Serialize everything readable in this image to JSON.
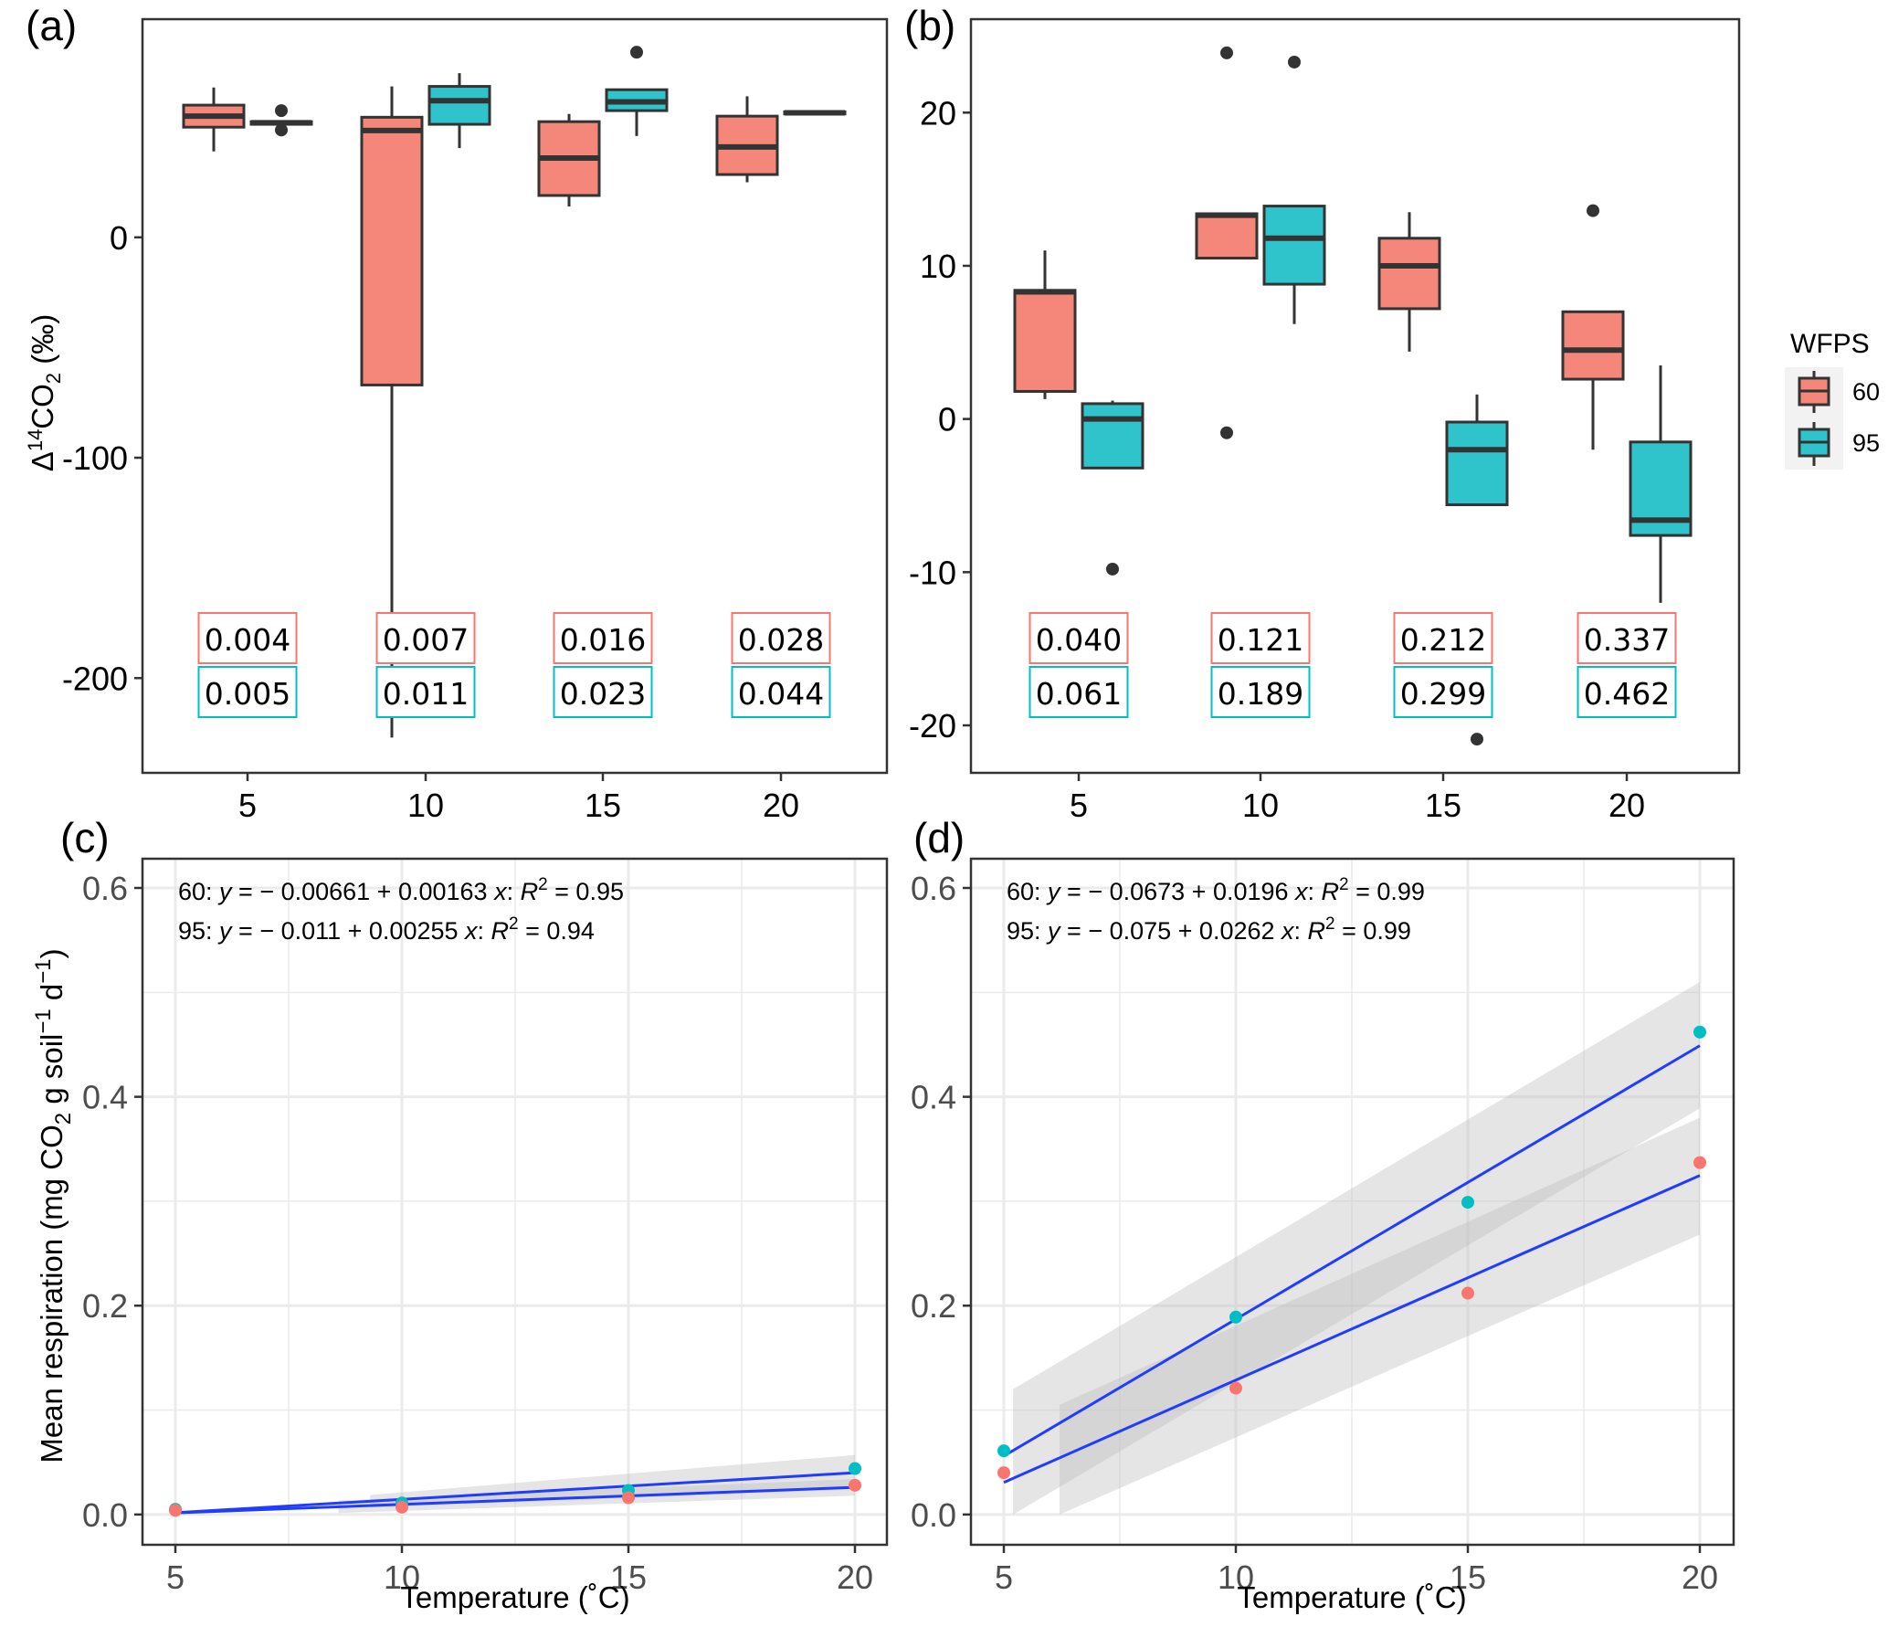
{
  "figure": {
    "panels": [
      "(a)",
      "(b)",
      "(c)",
      "(d)"
    ]
  },
  "legend": {
    "title": "WFPS",
    "entries": [
      {
        "label": "60",
        "color": "#F8766D"
      },
      {
        "label": "95",
        "color": "#00BFC4"
      }
    ]
  },
  "colors": {
    "wfps60": "#F8766D",
    "wfps95": "#00BFC4",
    "box60": "#F4877A",
    "box95": "#2FC4CB",
    "outline": "#333333",
    "fit_line": "#1F3CFF",
    "ribbon": "#BEBEBE",
    "grid": "#EBEBEB"
  },
  "chart_data": [
    {
      "panel": "(a)",
      "type": "box",
      "xlabel": "",
      "ylabel": "Δ14CO2 (‰)",
      "ylabel_parts": {
        "delta": "Δ",
        "sup": "14",
        "main": "CO",
        "sub": "2",
        "unit": " (‰)"
      },
      "categories": [
        "5",
        "10",
        "15",
        "20"
      ],
      "yticks": [
        0,
        -100,
        -200
      ],
      "ytick_labels": [
        "0",
        "-100",
        "-200"
      ],
      "ylim": [
        -243,
        99
      ],
      "grid": false,
      "series": [
        {
          "name": "60",
          "boxes": [
            {
              "whisker_low": 39,
              "q1": 50,
              "median": 55,
              "q3": 60,
              "whisker_high": 68,
              "outliers": []
            },
            {
              "whisker_low": -227,
              "q1": -67,
              "median": 48.5,
              "q3": 54.5,
              "whisker_high": 68.5,
              "outliers": []
            },
            {
              "whisker_low": 14,
              "q1": 19,
              "median": 36,
              "q3": 52.5,
              "whisker_high": 56,
              "outliers": []
            },
            {
              "whisker_low": 25,
              "q1": 28.5,
              "median": 41,
              "q3": 55,
              "whisker_high": 64,
              "outliers": []
            }
          ]
        },
        {
          "name": "95",
          "boxes": [
            {
              "whisker_low": 51,
              "q1": 51.3,
              "median": 52,
              "q3": 52.5,
              "whisker_high": 53,
              "outliers": [
                57.5,
                48.7
              ]
            },
            {
              "whisker_low": 40.5,
              "q1": 51.3,
              "median": 62,
              "q3": 68.5,
              "whisker_high": 74.5,
              "outliers": []
            },
            {
              "whisker_low": 46,
              "q1": 57.5,
              "median": 61.5,
              "q3": 67,
              "whisker_high": 67,
              "outliers": [
                84
              ]
            },
            {
              "whisker_low": 55.5,
              "q1": 56,
              "median": 56.5,
              "q3": 57,
              "whisker_high": 57,
              "outliers": []
            }
          ]
        }
      ],
      "annotations": {
        "60": [
          "0.004",
          "0.007",
          "0.016",
          "0.028"
        ],
        "95": [
          "0.005",
          "0.011",
          "0.023",
          "0.044"
        ]
      }
    },
    {
      "panel": "(b)",
      "type": "box",
      "xlabel": "",
      "ylabel": "",
      "categories": [
        "5",
        "10",
        "15",
        "20"
      ],
      "yticks": [
        20,
        10,
        0,
        -10,
        -20
      ],
      "ytick_labels": [
        "20",
        "10",
        "0",
        "-10",
        "-20"
      ],
      "ylim": [
        -23.1,
        26.1
      ],
      "grid": false,
      "legend": "right",
      "series": [
        {
          "name": "60",
          "boxes": [
            {
              "whisker_low": 1.3,
              "q1": 1.8,
              "median": 8.3,
              "q3": 8.4,
              "whisker_high": 11.0,
              "outliers": []
            },
            {
              "whisker_low": 10.5,
              "q1": 10.5,
              "median": 13.3,
              "q3": 13.4,
              "whisker_high": 13.4,
              "outliers": [
                23.9,
                -0.9
              ]
            },
            {
              "whisker_low": 4.4,
              "q1": 7.2,
              "median": 10.0,
              "q3": 11.8,
              "whisker_high": 13.5,
              "outliers": []
            },
            {
              "whisker_low": -2.0,
              "q1": 2.6,
              "median": 4.5,
              "q3": 7.0,
              "whisker_high": 7.0,
              "outliers": [
                13.6
              ]
            }
          ]
        },
        {
          "name": "95",
          "boxes": [
            {
              "whisker_low": -3.2,
              "q1": -3.2,
              "median": 0.0,
              "q3": 1.0,
              "whisker_high": 1.2,
              "outliers": [
                -9.8
              ]
            },
            {
              "whisker_low": 6.2,
              "q1": 8.8,
              "median": 11.8,
              "q3": 13.9,
              "whisker_high": 13.9,
              "outliers": [
                23.3
              ]
            },
            {
              "whisker_low": -5.6,
              "q1": -5.6,
              "median": -2.0,
              "q3": -0.2,
              "whisker_high": 1.6,
              "outliers": [
                -20.9
              ]
            },
            {
              "whisker_low": -12.0,
              "q1": -7.6,
              "median": -6.6,
              "q3": -1.5,
              "whisker_high": 3.5,
              "outliers": []
            }
          ]
        }
      ],
      "annotations": {
        "60": [
          "0.040",
          "0.121",
          "0.212",
          "0.337"
        ],
        "95": [
          "0.061",
          "0.189",
          "0.299",
          "0.462"
        ]
      }
    },
    {
      "panel": "(c)",
      "type": "scatter",
      "xlabel": "Temperature (˚C)",
      "ylabel": "Mean respiration (mg CO2 g soil-1 d-1)",
      "ylabel_parts": {
        "a": "Mean respiration (mg CO",
        "sub": "2",
        "b": " g soil",
        "sup1": "−1",
        "c": " d",
        "sup2": "−1",
        "d": ")"
      },
      "x": [
        5,
        10,
        15,
        20
      ],
      "xticks": [
        5,
        10,
        15,
        20
      ],
      "xlim": [
        4.27,
        20.7
      ],
      "yticks": [
        0.0,
        0.2,
        0.4,
        0.6
      ],
      "ytick_labels": [
        "0.0",
        "0.2",
        "0.4",
        "0.6"
      ],
      "ylim": [
        -0.029,
        0.628
      ],
      "grid": true,
      "series": [
        {
          "name": "60",
          "values": [
            0.004,
            0.007,
            0.016,
            0.028
          ],
          "fit": {
            "intercept": -0.00661,
            "slope": 0.00163,
            "r2": 0.95
          },
          "ci_band": {
            "x_start": 8.6,
            "lower": [
              null,
              null,
              -0.002,
              0.018
            ],
            "upper": [
              null,
              null,
              0.028,
              0.034
            ]
          }
        },
        {
          "name": "95",
          "values": [
            0.005,
            0.011,
            0.023,
            0.044
          ],
          "fit": {
            "intercept": -0.011,
            "slope": 0.00255,
            "r2": 0.94
          },
          "ci_band": {
            "x_start": 9.3,
            "lower": [
              null,
              null,
              0.0,
              0.024
            ],
            "upper": [
              null,
              null,
              0.034,
              0.057
            ]
          }
        }
      ],
      "equations": [
        {
          "prefix": "60: ",
          "y": "y",
          "body": " = − 0.00661 + 0.00163 ",
          "x": "x",
          "colon": ": ",
          "R": "R",
          "sup": "2",
          "tail": " = 0.95"
        },
        {
          "prefix": "95: ",
          "y": "y",
          "body": " = − 0.011 + 0.00255 ",
          "x": "x",
          "colon": ": ",
          "R": "R",
          "sup": "2",
          "tail": " = 0.94"
        }
      ]
    },
    {
      "panel": "(d)",
      "type": "scatter",
      "xlabel": "Temperature (˚C)",
      "ylabel": "",
      "x": [
        5,
        10,
        15,
        20
      ],
      "xticks": [
        5,
        10,
        15,
        20
      ],
      "xlim": [
        4.27,
        20.7
      ],
      "yticks": [
        0.0,
        0.2,
        0.4,
        0.6
      ],
      "ytick_labels": [
        "0.0",
        "0.2",
        "0.4",
        "0.6"
      ],
      "ylim": [
        -0.029,
        0.628
      ],
      "grid": true,
      "series": [
        {
          "name": "60",
          "values": [
            0.04,
            0.121,
            0.212,
            0.337
          ],
          "fit": {
            "intercept": -0.0673,
            "slope": 0.0196,
            "r2": 0.99
          },
          "ci_band": {
            "x_start": 6.2,
            "x_end": 20,
            "lower_start": 0.0,
            "upper_start": 0.105,
            "lower_end": 0.268,
            "upper_end": 0.38
          }
        },
        {
          "name": "95",
          "values": [
            0.061,
            0.189,
            0.299,
            0.462
          ],
          "fit": {
            "intercept": -0.075,
            "slope": 0.0262,
            "r2": 0.99
          },
          "ci_band": {
            "x_start": 5.2,
            "x_end": 20,
            "lower_start": 0.0,
            "upper_start": 0.12,
            "lower_end": 0.389,
            "upper_end": 0.51
          }
        }
      ],
      "equations": [
        {
          "prefix": "60: ",
          "y": "y",
          "body": " = − 0.0673 + 0.0196 ",
          "x": "x",
          "colon": ": ",
          "R": "R",
          "sup": "2",
          "tail": " = 0.99"
        },
        {
          "prefix": "95: ",
          "y": "y",
          "body": " = − 0.075 + 0.0262 ",
          "x": "x",
          "colon": ": ",
          "R": "R",
          "sup": "2",
          "tail": " = 0.99"
        }
      ]
    }
  ]
}
